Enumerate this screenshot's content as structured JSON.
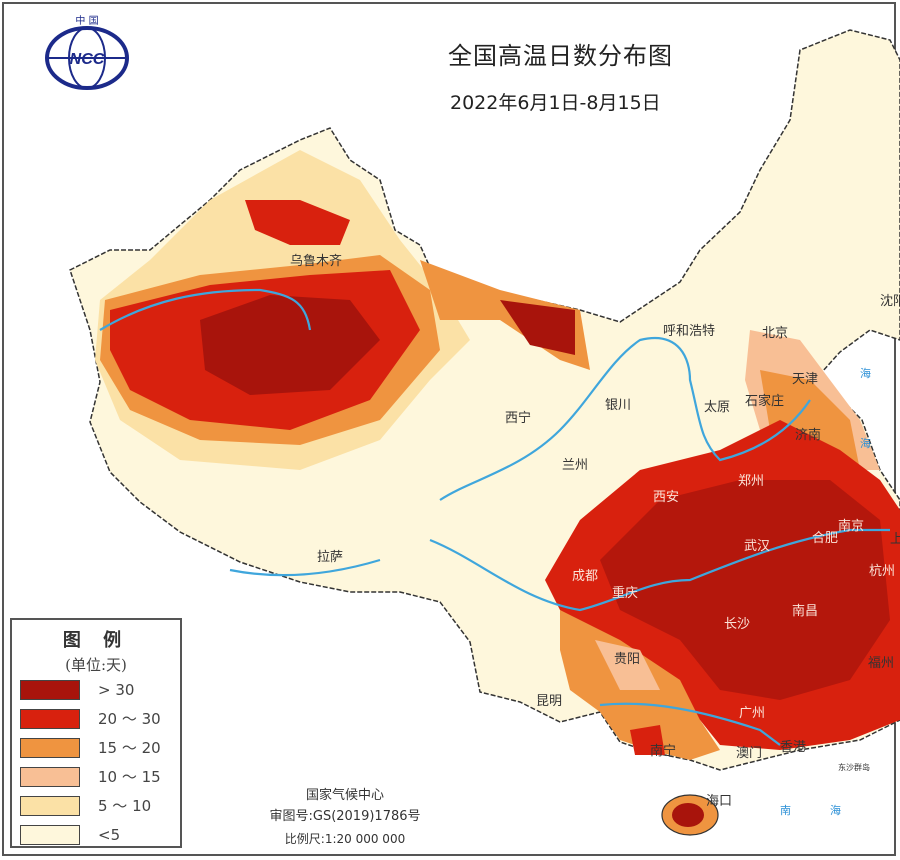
{
  "header": {
    "logo_text": "中国 NCC",
    "title": "全国高温日数分布图",
    "date_range": "2022年6月1日-8月15日"
  },
  "legend": {
    "title": "图 例",
    "unit": "(单位:天)",
    "items": [
      {
        "label": "> 30",
        "color": "#a8140c"
      },
      {
        "label": "20 ～ 30",
        "color": "#d8210e"
      },
      {
        "label": "15 ～ 20",
        "color": "#ef9440"
      },
      {
        "label": "10 ～ 15",
        "color": "#f8bf95"
      },
      {
        "label": "5 ～ 10",
        "color": "#fbe1a6"
      },
      {
        "label": "<5",
        "color": "#fef7dc"
      }
    ]
  },
  "footer": {
    "agency": "国家气候中心",
    "map_approval": "审图号:GS(2019)1786号",
    "scale": "比例尺:1:20 000 000"
  },
  "cities": [
    "乌鲁木齐",
    "呼和浩特",
    "北京",
    "天津",
    "沈阳",
    "银川",
    "太原",
    "石家庄",
    "济南",
    "西宁",
    "兰州",
    "郑州",
    "西安",
    "南京",
    "合肥",
    "武汉",
    "杭州",
    "上",
    "拉萨",
    "成都",
    "重庆",
    "长沙",
    "南昌",
    "福州",
    "贵阳",
    "昆明",
    "广州",
    "南宁",
    "澳门",
    "香港",
    "海口",
    "东沙群岛"
  ],
  "seas": [
    "海",
    "海",
    "南",
    "海"
  ],
  "colors": {
    "river": "#3fa6dc",
    "border": "#333333",
    "water": "#ffffff"
  }
}
